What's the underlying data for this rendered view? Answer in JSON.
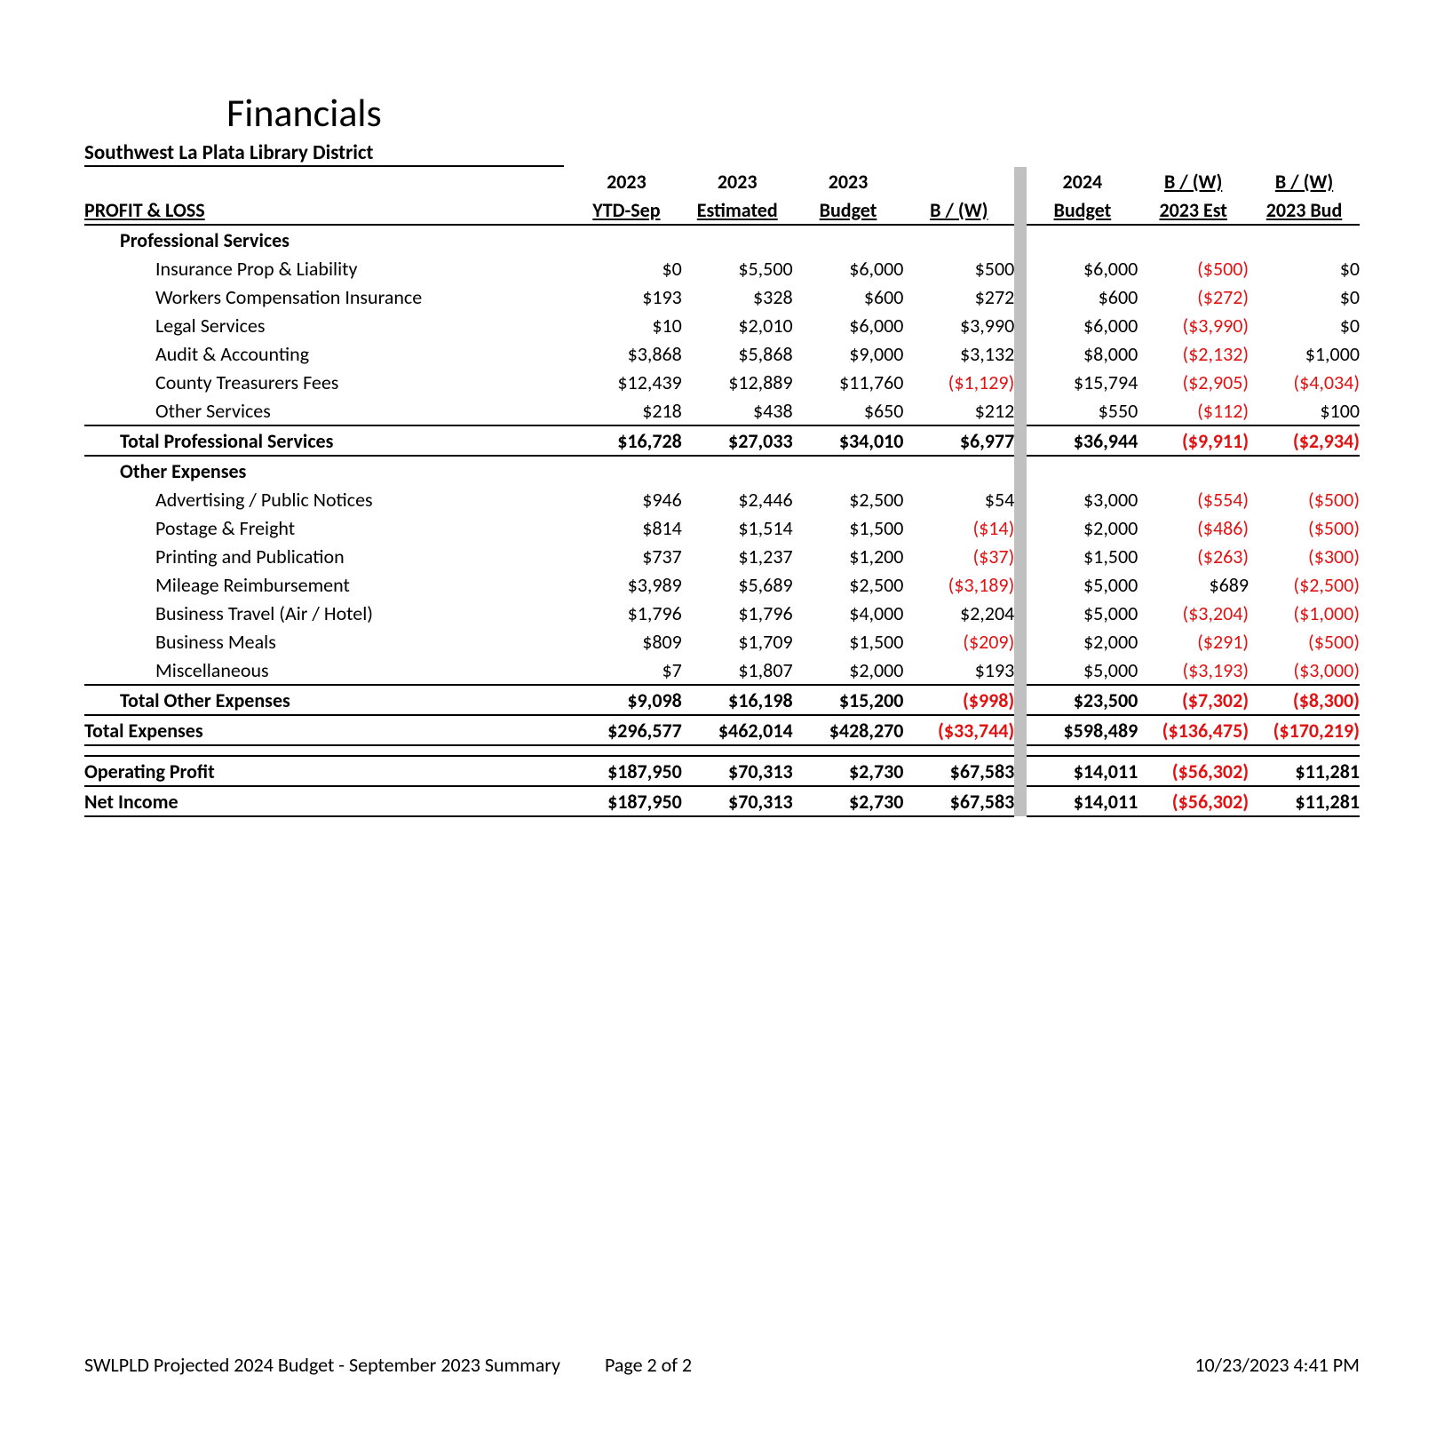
{
  "title": "Financials",
  "subtitle": "Southwest La Plata Library District",
  "colors": {
    "negative": "#e21212",
    "text": "#000000",
    "separator": "#c0c0c0"
  },
  "fonts": {
    "title_size": 44,
    "body_size": 22
  },
  "headers": {
    "row1": [
      "",
      "2023",
      "2023",
      "2023",
      "",
      "",
      "2024",
      "B / (W)",
      "B / (W)"
    ],
    "row2": [
      "PROFIT & LOSS",
      "YTD-Sep",
      "Estimated",
      "Budget",
      "B / (W)",
      "",
      "Budget",
      "2023 Est",
      "2023 Bud"
    ]
  },
  "sections": [
    {
      "header": "Professional Services",
      "rows": [
        {
          "label": "Insurance Prop & Liability",
          "vals": [
            "$0",
            "$5,500",
            "$6,000",
            "$500",
            "$6,000",
            "($500)",
            "$0"
          ],
          "neg": [
            false,
            false,
            false,
            false,
            false,
            true,
            false
          ]
        },
        {
          "label": "Workers Compensation Insurance",
          "vals": [
            "$193",
            "$328",
            "$600",
            "$272",
            "$600",
            "($272)",
            "$0"
          ],
          "neg": [
            false,
            false,
            false,
            false,
            false,
            true,
            false
          ]
        },
        {
          "label": "Legal Services",
          "vals": [
            "$10",
            "$2,010",
            "$6,000",
            "$3,990",
            "$6,000",
            "($3,990)",
            "$0"
          ],
          "neg": [
            false,
            false,
            false,
            false,
            false,
            true,
            false
          ]
        },
        {
          "label": "Audit & Accounting",
          "vals": [
            "$3,868",
            "$5,868",
            "$9,000",
            "$3,132",
            "$8,000",
            "($2,132)",
            "$1,000"
          ],
          "neg": [
            false,
            false,
            false,
            false,
            false,
            true,
            false
          ]
        },
        {
          "label": "County Treasurers Fees",
          "vals": [
            "$12,439",
            "$12,889",
            "$11,760",
            "($1,129)",
            "$15,794",
            "($2,905)",
            "($4,034)"
          ],
          "neg": [
            false,
            false,
            false,
            true,
            false,
            true,
            true
          ]
        },
        {
          "label": "Other Services",
          "vals": [
            "$218",
            "$438",
            "$650",
            "$212",
            "$550",
            "($112)",
            "$100"
          ],
          "neg": [
            false,
            false,
            false,
            false,
            false,
            true,
            false
          ]
        }
      ],
      "total": {
        "label": "Total Professional Services",
        "vals": [
          "$16,728",
          "$27,033",
          "$34,010",
          "$6,977",
          "$36,944",
          "($9,911)",
          "($2,934)"
        ],
        "neg": [
          false,
          false,
          false,
          false,
          false,
          true,
          true
        ]
      }
    },
    {
      "header": "Other Expenses",
      "rows": [
        {
          "label": "Advertising / Public Notices",
          "vals": [
            "$946",
            "$2,446",
            "$2,500",
            "$54",
            "$3,000",
            "($554)",
            "($500)"
          ],
          "neg": [
            false,
            false,
            false,
            false,
            false,
            true,
            true
          ]
        },
        {
          "label": "Postage & Freight",
          "vals": [
            "$814",
            "$1,514",
            "$1,500",
            "($14)",
            "$2,000",
            "($486)",
            "($500)"
          ],
          "neg": [
            false,
            false,
            false,
            true,
            false,
            true,
            true
          ]
        },
        {
          "label": "Printing and Publication",
          "vals": [
            "$737",
            "$1,237",
            "$1,200",
            "($37)",
            "$1,500",
            "($263)",
            "($300)"
          ],
          "neg": [
            false,
            false,
            false,
            true,
            false,
            true,
            true
          ]
        },
        {
          "label": "Mileage Reimbursement",
          "vals": [
            "$3,989",
            "$5,689",
            "$2,500",
            "($3,189)",
            "$5,000",
            "$689",
            "($2,500)"
          ],
          "neg": [
            false,
            false,
            false,
            true,
            false,
            false,
            true
          ]
        },
        {
          "label": "Business Travel (Air / Hotel)",
          "vals": [
            "$1,796",
            "$1,796",
            "$4,000",
            "$2,204",
            "$5,000",
            "($3,204)",
            "($1,000)"
          ],
          "neg": [
            false,
            false,
            false,
            false,
            false,
            true,
            true
          ]
        },
        {
          "label": "Business Meals",
          "vals": [
            "$809",
            "$1,709",
            "$1,500",
            "($209)",
            "$2,000",
            "($291)",
            "($500)"
          ],
          "neg": [
            false,
            false,
            false,
            true,
            false,
            true,
            true
          ]
        },
        {
          "label": "Miscellaneous",
          "vals": [
            "$7",
            "$1,807",
            "$2,000",
            "$193",
            "$5,000",
            "($3,193)",
            "($3,000)"
          ],
          "neg": [
            false,
            false,
            false,
            false,
            false,
            true,
            true
          ]
        }
      ],
      "total": {
        "label": "Total Other Expenses",
        "vals": [
          "$9,098",
          "$16,198",
          "$15,200",
          "($998)",
          "$23,500",
          "($7,302)",
          "($8,300)"
        ],
        "neg": [
          false,
          false,
          false,
          true,
          false,
          true,
          true
        ]
      }
    }
  ],
  "grand_totals": [
    {
      "label": "Total Expenses",
      "vals": [
        "$296,577",
        "$462,014",
        "$428,270",
        "($33,744)",
        "$598,489",
        "($136,475)",
        "($170,219)"
      ],
      "neg": [
        false,
        false,
        false,
        true,
        false,
        true,
        true
      ]
    }
  ],
  "bottom_rows": [
    {
      "label": "Operating Profit",
      "vals": [
        "$187,950",
        "$70,313",
        "$2,730",
        "$67,583",
        "$14,011",
        "($56,302)",
        "$11,281"
      ],
      "neg": [
        false,
        false,
        false,
        false,
        false,
        true,
        false
      ]
    },
    {
      "label": "Net Income",
      "vals": [
        "$187,950",
        "$70,313",
        "$2,730",
        "$67,583",
        "$14,011",
        "($56,302)",
        "$11,281"
      ],
      "neg": [
        false,
        false,
        false,
        false,
        false,
        true,
        false
      ]
    }
  ],
  "footer": {
    "left": "SWLPLD Projected 2024 Budget - September 2023 Summary",
    "mid": "Page 2 of 2",
    "right": "10/23/2023 4:41 PM"
  }
}
